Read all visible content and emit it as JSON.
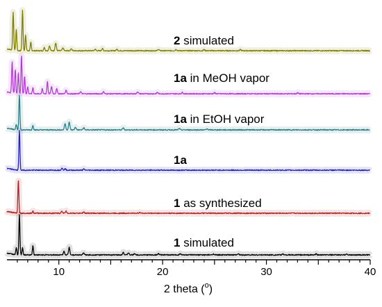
{
  "chart_data": {
    "type": "line",
    "xlabel_main": "2 theta (",
    "xlabel_sup": "o",
    "xlabel_end": ")",
    "xlim": [
      5,
      40
    ],
    "x_ticks": [
      10,
      20,
      30,
      40
    ],
    "grid": false,
    "series": [
      {
        "name_bold": "2",
        "name_rest": " simulated",
        "color": "#808000",
        "peaks": [
          [
            5.6,
            55
          ],
          [
            5.9,
            30
          ],
          [
            6.5,
            58
          ],
          [
            6.8,
            22
          ],
          [
            7.3,
            12
          ],
          [
            8.6,
            5
          ],
          [
            9.1,
            7
          ],
          [
            9.7,
            11
          ],
          [
            10.4,
            4
          ],
          [
            11.2,
            3
          ],
          [
            13.5,
            2
          ],
          [
            14.2,
            3
          ],
          [
            15.6,
            2
          ],
          [
            19.6,
            2
          ],
          [
            21.3,
            2
          ],
          [
            24.0,
            1.5
          ],
          [
            27.5,
            1.5
          ]
        ]
      },
      {
        "name_bold": "1a",
        "name_rest": " in MeOH vapor",
        "color": "#b23bd6",
        "peaks": [
          [
            5.5,
            45
          ],
          [
            5.8,
            35
          ],
          [
            6.1,
            30
          ],
          [
            6.4,
            55
          ],
          [
            6.7,
            25
          ],
          [
            7.0,
            10
          ],
          [
            7.5,
            9
          ],
          [
            8.4,
            8
          ],
          [
            8.9,
            18
          ],
          [
            9.3,
            10
          ],
          [
            9.8,
            7
          ],
          [
            10.7,
            5
          ],
          [
            12.1,
            3
          ],
          [
            14.3,
            3
          ],
          [
            17.6,
            3
          ],
          [
            19.5,
            2
          ],
          [
            21.9,
            2
          ],
          [
            25.0,
            1.5
          ],
          [
            33.0,
            1.5
          ]
        ]
      },
      {
        "name_bold": "1a",
        "name_rest": " in EtOH vapor",
        "color": "#2a7f87",
        "peaks": [
          [
            5.9,
            8
          ],
          [
            6.2,
            50
          ],
          [
            7.5,
            7
          ],
          [
            10.6,
            9
          ],
          [
            11.0,
            11
          ],
          [
            11.6,
            4
          ],
          [
            12.4,
            3
          ],
          [
            16.2,
            3
          ],
          [
            21.6,
            2
          ],
          [
            24.3,
            1.5
          ]
        ]
      },
      {
        "name_bold": "1a",
        "name_rest": "",
        "color": "#2323b8",
        "peaks": [
          [
            6.2,
            57
          ],
          [
            10.3,
            3
          ],
          [
            10.6,
            2
          ],
          [
            12.4,
            1.5
          ]
        ]
      },
      {
        "name_bold": "1",
        "name_rest": " as synthesized",
        "color": "#b22222",
        "peaks": [
          [
            6.1,
            47
          ],
          [
            7.5,
            3
          ],
          [
            10.3,
            3
          ],
          [
            10.7,
            3
          ],
          [
            12.4,
            2
          ],
          [
            17.8,
            1.5
          ]
        ]
      },
      {
        "name_bold": "1",
        "name_rest": " simulated",
        "color": "#000000",
        "peaks": [
          [
            5.9,
            10
          ],
          [
            6.2,
            58
          ],
          [
            6.5,
            10
          ],
          [
            7.5,
            13
          ],
          [
            10.5,
            5
          ],
          [
            11.0,
            11
          ],
          [
            12.4,
            3
          ],
          [
            16.2,
            4
          ],
          [
            16.7,
            3
          ],
          [
            17.3,
            2
          ],
          [
            19.6,
            2
          ],
          [
            21.7,
            2
          ],
          [
            24.9,
            1.5
          ],
          [
            27.3,
            1.5
          ],
          [
            31.6,
            1.5
          ],
          [
            34.8,
            1.5
          ],
          [
            37.7,
            1.5
          ]
        ]
      }
    ]
  }
}
